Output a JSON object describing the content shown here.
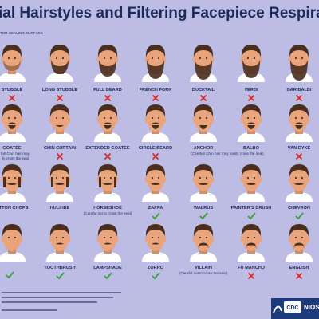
{
  "header": {
    "title": "ial Hairstyles and Filtering Facepiece Respirat",
    "subtitle": "TOR SEALING SURFACE"
  },
  "rows": [
    [
      {
        "label": "STUBBLE",
        "mark": "x"
      },
      {
        "label": "LONG STUBBLE",
        "mark": "x"
      },
      {
        "label": "FULL BEARD",
        "mark": "x"
      },
      {
        "label": "FRENCH FORK",
        "mark": "x"
      },
      {
        "label": "DUCKTAIL",
        "mark": "x"
      },
      {
        "label": "VERDI",
        "mark": "x"
      },
      {
        "label": "GARIBALDI",
        "mark": "x"
      }
    ],
    [
      {
        "label": "GOATEE",
        "note": [
          "ful! Chin hair may",
          "ily cross the seal"
        ]
      },
      {
        "label": "CHIN CURTAIN",
        "mark": "x"
      },
      {
        "label": "EXTENDED GOATEE",
        "mark": "x"
      },
      {
        "label": "CIRCLE BEARD",
        "mark": "x"
      },
      {
        "label": "ANCHOR",
        "note": [
          "(Careful! Chin hair may easily cross the seal)"
        ]
      },
      {
        "label": "BALBO"
      },
      {
        "label": "VAN DYKE",
        "mark": "x"
      }
    ],
    [
      {
        "label": "UTTON CHOPS"
      },
      {
        "label": "HULIHEE"
      },
      {
        "label": "HORSESHOE",
        "note": [
          "(Careful not to cross the seal)"
        ]
      },
      {
        "label": "ZAPPA",
        "mark": "check"
      },
      {
        "label": "WALRUS",
        "mark": "check"
      },
      {
        "label": "PAINTER'S BRUSH",
        "mark": "check"
      },
      {
        "label": "CHEVRON",
        "mark": "check"
      }
    ],
    [
      {
        "mark": "check"
      },
      {
        "label": "TOOTHBRUSH",
        "mark": "check"
      },
      {
        "label": "LAMPSHADE",
        "mark": "check"
      },
      {
        "label": "ZORRO",
        "mark": "check"
      },
      {
        "label": "VILLAIN",
        "note": [
          "(Careful not to cross the seal)"
        ]
      },
      {
        "label": "FU MANCHU",
        "mark": "x"
      },
      {
        "label": "ENGLISH",
        "mark": "x"
      }
    ]
  ],
  "logo": {
    "agency": "CDC",
    "institute": "NIOS"
  }
}
